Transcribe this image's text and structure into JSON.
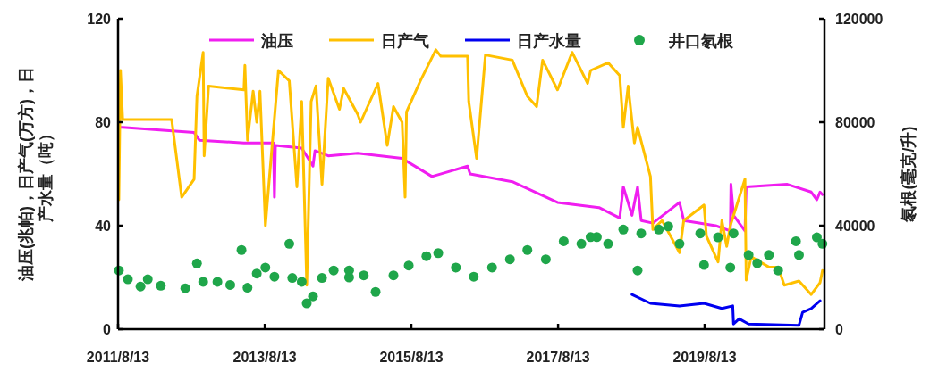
{
  "chart_data": {
    "type": "line",
    "ylabel": "油压(兆帕)，日产气(万方)，日产水量（吨）",
    "y2label": "氡根(毫克/升)",
    "xlim": [
      "2011-08-13",
      "2021-04-01"
    ],
    "xticks": [
      {
        "value": "2011-08-13",
        "label": "2011/8/13"
      },
      {
        "value": "2013-08-13",
        "label": "2013/8/13"
      },
      {
        "value": "2015-08-13",
        "label": "2015/8/13"
      },
      {
        "value": "2017-08-13",
        "label": "2017/8/13"
      },
      {
        "value": "2019-08-13",
        "label": "2019/8/13"
      }
    ],
    "ylim": [
      0,
      120
    ],
    "yticks": [
      0,
      40,
      80,
      120
    ],
    "y2lim": [
      0,
      120000
    ],
    "y2ticks": [
      0,
      40000,
      80000,
      120000
    ],
    "legend": "top",
    "series": [
      {
        "name": "油压",
        "color": "#f01ef0",
        "x": [
          "2011-08-17",
          "2011-09-05",
          "2012-08-26",
          "2012-09-22",
          "2013-05-01",
          "2013-09-25",
          "2013-09-30",
          "2013-10-05",
          "2014-02-13",
          "2014-04-10",
          "2014-04-20",
          "2014-06-25",
          "2014-11-19",
          "2015-06-28",
          "2015-11-24",
          "2016-05-19",
          "2016-06-01",
          "2016-12-28",
          "2017-08-10",
          "2018-03-05",
          "2018-06-16",
          "2018-07-04",
          "2018-08-16",
          "2018-09-13",
          "2018-10-01",
          "2018-11-28",
          "2019-04-10",
          "2019-05-01",
          "2019-10-07",
          "2019-12-19",
          "2019-12-22",
          "2020-01-04",
          "2020-03-01",
          "2020-03-07",
          "2020-09-28",
          "2021-01-25",
          "2021-02-22",
          "2021-03-10",
          "2021-03-22"
        ],
        "values": [
          78,
          78,
          76,
          73,
          72,
          72,
          51,
          71,
          70,
          63,
          69,
          67,
          68,
          66,
          59,
          63,
          60,
          57,
          49,
          47,
          43,
          55,
          44,
          55,
          42,
          41,
          49,
          42,
          40,
          38,
          56,
          44,
          38,
          55,
          56,
          53,
          50,
          53,
          52
        ]
      },
      {
        "name": "日产气",
        "color": "#ffc000",
        "x": [
          "2011-08-17",
          "2011-08-25",
          "2011-09-05",
          "2012-05-06",
          "2012-06-25",
          "2012-08-26",
          "2012-09-09",
          "2012-10-10",
          "2012-10-15",
          "2012-11-06",
          "2013-05-01",
          "2013-05-06",
          "2013-05-19",
          "2013-06-16",
          "2013-07-04",
          "2013-07-20",
          "2013-08-16",
          "2013-10-20",
          "2013-12-13",
          "2014-01-20",
          "2014-02-13",
          "2014-03-10",
          "2014-04-01",
          "2014-04-25",
          "2014-05-25",
          "2014-06-25",
          "2014-08-20",
          "2014-09-10",
          "2014-11-19",
          "2014-12-03",
          "2015-02-28",
          "2015-04-15",
          "2015-05-16",
          "2015-06-28",
          "2015-07-13",
          "2015-07-20",
          "2015-09-27",
          "2015-12-13",
          "2016-01-07",
          "2016-05-19",
          "2016-05-25",
          "2016-07-03",
          "2016-08-16",
          "2016-12-28",
          "2017-03-13",
          "2017-04-28",
          "2017-05-28",
          "2017-08-10",
          "2017-10-22",
          "2018-01-07",
          "2018-01-22",
          "2018-04-19",
          "2018-06-16",
          "2018-07-04",
          "2018-07-28",
          "2018-08-28",
          "2018-09-13",
          "2018-11-16",
          "2018-11-28",
          "2019-01-13",
          "2019-04-10",
          "2019-05-01",
          "2019-08-10",
          "2019-08-22",
          "2019-10-19",
          "2019-11-07",
          "2019-12-01",
          "2019-12-19",
          "2020-03-01",
          "2020-03-07",
          "2020-04-01",
          "2020-06-28",
          "2020-08-13",
          "2020-09-13",
          "2020-11-25",
          "2021-01-25",
          "2021-03-10",
          "2021-03-22"
        ],
        "values": [
          50,
          100,
          81,
          81,
          51,
          58,
          90,
          107,
          67,
          94,
          92.5,
          102,
          73,
          92,
          80,
          92,
          40,
          100,
          96,
          55,
          88,
          17,
          88,
          94,
          56,
          97,
          85,
          93,
          83,
          80,
          95,
          71,
          86,
          80,
          51,
          84,
          96,
          108,
          105.5,
          105.5,
          88,
          66,
          106,
          104,
          90,
          86,
          104,
          92.5,
          107,
          95,
          100,
          103,
          98,
          78,
          94,
          72,
          78,
          59,
          38.5,
          42,
          29.6,
          42,
          48,
          36,
          26,
          42,
          32,
          40,
          58,
          19,
          28,
          24,
          24,
          17,
          18.6,
          13.4,
          18,
          22.7
        ]
      },
      {
        "name": "日产水量",
        "color": "#0000f0",
        "x": [
          "2018-08-16",
          "2018-11-16",
          "2019-04-10",
          "2019-08-10",
          "2019-11-07",
          "2019-12-31",
          "2020-01-04",
          "2020-02-01",
          "2020-03-19",
          "2020-11-25",
          "2020-12-13",
          "2021-01-25",
          "2021-03-10"
        ],
        "values": [
          13.4,
          10,
          9,
          10,
          8,
          9,
          2,
          4,
          2,
          1.5,
          6.5,
          8,
          11
        ]
      },
      {
        "name": "井口氡根",
        "type": "scatter",
        "axis": "y2",
        "color": "#1fa64a",
        "x": [
          "2011-08-17",
          "2011-10-01",
          "2011-12-03",
          "2012-01-08",
          "2012-03-13",
          "2012-07-13",
          "2012-09-09",
          "2012-10-10",
          "2012-12-20",
          "2013-02-22",
          "2013-04-19",
          "2013-05-19",
          "2013-07-04",
          "2013-08-16",
          "2013-09-30",
          "2013-12-13",
          "2013-12-28",
          "2014-02-13",
          "2014-03-10",
          "2014-04-10",
          "2014-05-25",
          "2014-07-22",
          "2014-10-07",
          "2014-10-07",
          "2014-12-19",
          "2015-02-16",
          "2015-05-16",
          "2015-07-31",
          "2015-10-27",
          "2015-12-25",
          "2016-03-22",
          "2016-06-19",
          "2016-09-18",
          "2016-12-16",
          "2017-03-13",
          "2017-06-13",
          "2017-09-10",
          "2017-12-07",
          "2018-02-22",
          "2018-01-22",
          "2018-04-19",
          "2018-07-04",
          "2018-09-13",
          "2018-10-01",
          "2018-12-28",
          "2019-02-13",
          "2019-04-10",
          "2019-07-22",
          "2019-08-10",
          "2019-10-19",
          "2019-12-19",
          "2020-01-04",
          "2020-03-19",
          "2020-05-01",
          "2020-06-28",
          "2020-08-13",
          "2020-11-10",
          "2020-11-25",
          "2021-02-22",
          "2021-03-22"
        ],
        "values": [
          22700,
          19300,
          16500,
          19300,
          16800,
          15800,
          25400,
          18300,
          18300,
          17100,
          30600,
          16000,
          21500,
          23800,
          20300,
          33000,
          19800,
          18300,
          10000,
          12700,
          19800,
          22700,
          20000,
          22700,
          20800,
          14400,
          20800,
          24600,
          28200,
          29400,
          23800,
          20300,
          23800,
          27000,
          30600,
          27000,
          34000,
          33000,
          35600,
          35600,
          33000,
          38500,
          22700,
          37000,
          38500,
          39700,
          33000,
          37000,
          24800,
          35500,
          23800,
          37000,
          28700,
          25500,
          28700,
          22700,
          34000,
          28700,
          35500,
          33000
        ]
      }
    ]
  }
}
